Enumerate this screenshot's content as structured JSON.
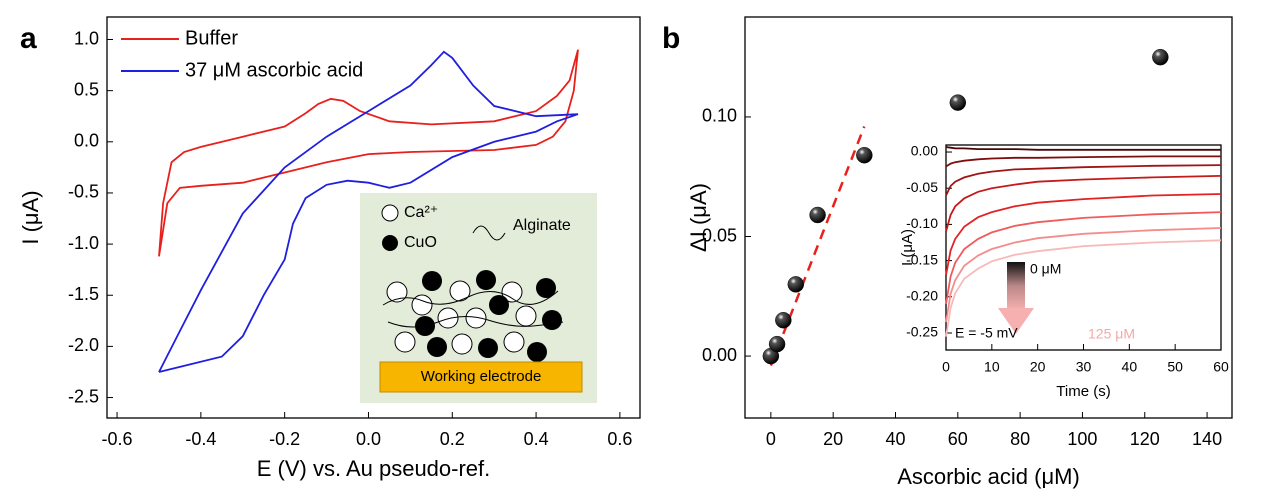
{
  "chart_data": [
    {
      "type": "line",
      "panel_label": "a",
      "x_label": "E (V) vs. Au pseudo-ref.",
      "y_label": "I (μA)",
      "xlim": [
        -0.624,
        0.648
      ],
      "xticks": [
        -0.6,
        -0.4,
        -0.2,
        {
          "value": 0,
          "label": "0.0"
        },
        0.2,
        0.4,
        0.6
      ],
      "ylim": [
        -2.7,
        1.22
      ],
      "yticks": [
        {
          "value": 1,
          "label": "1.0"
        },
        0.5,
        {
          "value": 0,
          "label": "0.0"
        },
        -0.5,
        {
          "value": -1,
          "label": "-1.0"
        },
        -1.5,
        {
          "value": -2,
          "label": "-2.0"
        },
        -2.5
      ],
      "legend": "upper left",
      "series": [
        {
          "name": "Buffer",
          "color": "#e8201c",
          "x": [
            -0.5,
            -0.49,
            -0.47,
            -0.44,
            -0.4,
            -0.3,
            -0.2,
            -0.15,
            -0.12,
            -0.09,
            -0.06,
            -0.02,
            0.05,
            0.15,
            0.3,
            0.4,
            0.45,
            0.48,
            0.5,
            0.49,
            0.47,
            0.44,
            0.4,
            0.3,
            0.1,
            0.0,
            -0.1,
            -0.2,
            -0.3,
            -0.4,
            -0.45,
            -0.48,
            -0.5
          ],
          "values": [
            -1.12,
            -0.6,
            -0.2,
            -0.1,
            -0.05,
            0.05,
            0.15,
            0.28,
            0.37,
            0.42,
            0.4,
            0.3,
            0.2,
            0.17,
            0.2,
            0.3,
            0.45,
            0.6,
            0.9,
            0.5,
            0.2,
            0.05,
            -0.03,
            -0.08,
            -0.1,
            -0.12,
            -0.2,
            -0.3,
            -0.4,
            -0.43,
            -0.45,
            -0.6,
            -1.12
          ]
        },
        {
          "name": "37 μM ascorbic acid",
          "color": "#1f1fe0",
          "x": [
            -0.5,
            -0.45,
            -0.35,
            -0.3,
            -0.25,
            -0.2,
            -0.18,
            -0.15,
            -0.1,
            -0.05,
            0.0,
            0.05,
            0.1,
            0.2,
            0.3,
            0.4,
            0.45,
            0.5,
            0.4,
            0.3,
            0.25,
            0.2,
            0.18,
            0.15,
            0.1,
            0.0,
            -0.1,
            -0.2,
            -0.3,
            -0.4,
            -0.45,
            -0.5
          ],
          "values": [
            -2.25,
            -2.2,
            -2.1,
            -1.9,
            -1.5,
            -1.15,
            -0.8,
            -0.55,
            -0.42,
            -0.38,
            -0.4,
            -0.45,
            -0.4,
            -0.15,
            0.0,
            0.1,
            0.2,
            0.27,
            0.25,
            0.35,
            0.55,
            0.82,
            0.88,
            0.75,
            0.55,
            0.3,
            0.05,
            -0.25,
            -0.7,
            -1.45,
            -1.85,
            -2.25
          ]
        }
      ],
      "annotations": [
        "Ca²⁺",
        "CuO",
        "Alginate",
        "Working electrode"
      ]
    },
    {
      "type": "scatter",
      "panel_label": "b",
      "x_label": "Ascorbic acid (μM)",
      "y_label": "ΔI (μA)",
      "xlim": [
        -8.3,
        148
      ],
      "xticks": [
        0,
        20,
        40,
        60,
        80,
        100,
        120,
        140
      ],
      "ylim": [
        -0.0259,
        0.1418
      ],
      "yticks": [
        {
          "value": 0,
          "label": "0.00"
        },
        0.05,
        {
          "value": 0.1,
          "label": "0.10"
        }
      ],
      "x": [
        0,
        2,
        4,
        8,
        15,
        30,
        60,
        125
      ],
      "values": [
        0,
        0.005,
        0.015,
        0.03,
        0.059,
        0.084,
        0.106,
        0.125
      ],
      "color": "#111111",
      "fit": {
        "x": [
          0,
          30
        ],
        "values": [
          -0.004,
          0.096
        ],
        "color": "#e8201c"
      }
    },
    {
      "type": "line",
      "x_label": "Time (s)",
      "y_label": "I (μA)",
      "xlim": [
        0,
        60
      ],
      "xticks": [
        0,
        10,
        20,
        30,
        40,
        50,
        60
      ],
      "ylim": [
        -0.2735,
        0.0097
      ],
      "yticks": [
        {
          "value": 0,
          "label": "0.00"
        },
        -0.05,
        {
          "value": -0.1,
          "label": "-0.10"
        },
        -0.15,
        {
          "value": -0.2,
          "label": "-0.20"
        },
        -0.25
      ],
      "x": [
        0,
        1,
        2,
        4,
        7,
        10,
        15,
        20,
        30,
        45,
        60
      ],
      "series": [
        {
          "color": "#4a0606",
          "values": [
            0.007,
            0.006,
            0.005,
            0.005,
            0.004,
            0.004,
            0.004,
            0.003,
            0.003,
            0.003,
            0.003
          ]
        },
        {
          "color": "#7e0e0e",
          "values": [
            -0.02,
            -0.016,
            -0.014,
            -0.012,
            -0.01,
            -0.009,
            -0.008,
            -0.008,
            -0.007,
            -0.006,
            -0.006
          ]
        },
        {
          "color": "#a01414",
          "values": [
            -0.06,
            -0.047,
            -0.041,
            -0.035,
            -0.03,
            -0.027,
            -0.024,
            -0.023,
            -0.021,
            -0.019,
            -0.018
          ]
        },
        {
          "color": "#c41a1a",
          "values": [
            -0.11,
            -0.087,
            -0.075,
            -0.064,
            -0.055,
            -0.05,
            -0.045,
            -0.041,
            -0.038,
            -0.035,
            -0.033
          ]
        },
        {
          "color": "#e42222",
          "values": [
            -0.17,
            -0.136,
            -0.12,
            -0.103,
            -0.09,
            -0.083,
            -0.075,
            -0.07,
            -0.065,
            -0.06,
            -0.058
          ]
        },
        {
          "color": "#f05a5a",
          "values": [
            -0.21,
            -0.172,
            -0.153,
            -0.134,
            -0.12,
            -0.111,
            -0.102,
            -0.097,
            -0.091,
            -0.086,
            -0.083
          ]
        },
        {
          "color": "#f58c8c",
          "values": [
            -0.235,
            -0.196,
            -0.177,
            -0.157,
            -0.143,
            -0.134,
            -0.125,
            -0.119,
            -0.113,
            -0.108,
            -0.105
          ]
        },
        {
          "color": "#f8b8b8",
          "values": [
            -0.255,
            -0.215,
            -0.195,
            -0.175,
            -0.161,
            -0.151,
            -0.142,
            -0.137,
            -0.13,
            -0.125,
            -0.122
          ]
        }
      ],
      "annotations": [
        "0 μM",
        "125 μM",
        "E = -5 mV"
      ]
    }
  ]
}
